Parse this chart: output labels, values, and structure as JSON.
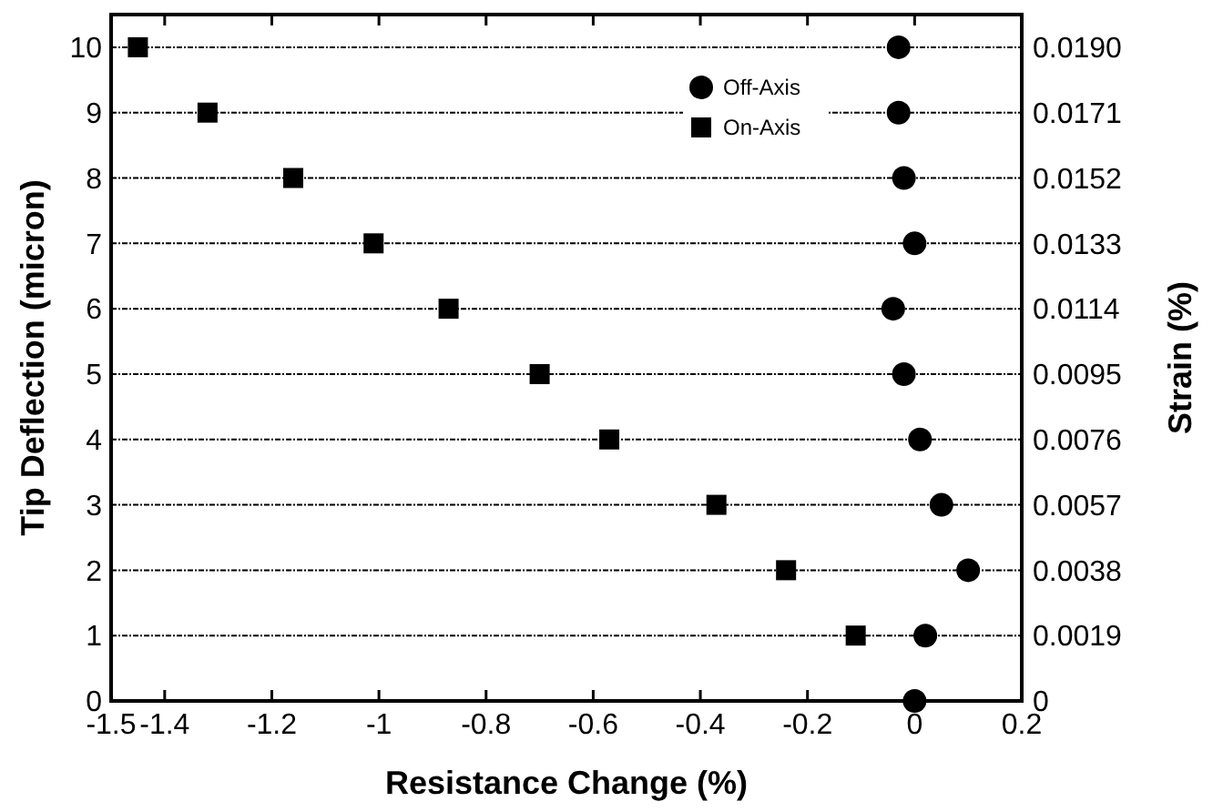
{
  "chart_data": {
    "type": "scatter",
    "xlabel": "Resistance Change (%)",
    "ylabel": "Tip Deflection (micron)",
    "y2label": "Strain (%)",
    "series": [
      {
        "name": "Off-Axis",
        "color": "#000000",
        "marker": "circle",
        "x": [
          0,
          0.02,
          0.1,
          0.05,
          0.01,
          -0.02,
          -0.04,
          0,
          -0.02,
          -0.03,
          -0.03
        ],
        "values": [
          0,
          1,
          2,
          3,
          4,
          5,
          6,
          7,
          8,
          9,
          10
        ]
      },
      {
        "name": "On-Axis",
        "color": "#000000",
        "marker": "square",
        "x": [
          -0.11,
          -0.24,
          -0.37,
          -0.57,
          -0.7,
          -0.87,
          -1.01,
          -1.16,
          -1.32,
          -1.45
        ],
        "values": [
          1,
          2,
          3,
          4,
          5,
          6,
          7,
          8,
          9,
          10
        ]
      }
    ],
    "xlim": [
      -1.5,
      0.2
    ],
    "xticks": [
      -1.5,
      -1.4,
      -1.2,
      -1,
      -0.8,
      -0.6,
      -0.4,
      -0.2,
      0,
      0.2
    ],
    "ylim": [
      0,
      10.5
    ],
    "yticks": [
      0,
      1,
      2,
      3,
      4,
      5,
      6,
      7,
      8,
      9,
      10
    ],
    "y2lim": [
      0,
      0.01995
    ],
    "y2ticks": [
      0,
      {
        "value": 0.0019,
        "label": "0.0019"
      },
      {
        "value": 0.0038,
        "label": "0.0038"
      },
      {
        "value": 0.0057,
        "label": "0.0057"
      },
      {
        "value": 0.0076,
        "label": "0.0076"
      },
      {
        "value": 0.0095,
        "label": "0.0095"
      },
      {
        "value": 0.0114,
        "label": "0.0114"
      },
      {
        "value": 0.0133,
        "label": "0.0133"
      },
      {
        "value": 0.0152,
        "label": "0.0152"
      },
      {
        "value": 0.0171,
        "label": "0.0171"
      },
      {
        "value": 0.019,
        "label": "0.0190"
      }
    ],
    "grid": "y",
    "legend": "top right"
  }
}
